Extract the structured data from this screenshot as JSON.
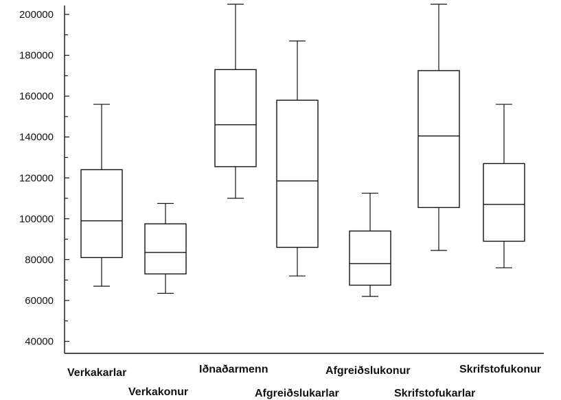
{
  "chart_data": {
    "type": "boxplot",
    "title": "",
    "xlabel": "",
    "ylabel": "",
    "ylim": [
      40000,
      200000
    ],
    "y_ticks": [
      40000,
      60000,
      80000,
      100000,
      120000,
      140000,
      160000,
      180000,
      200000
    ],
    "grid": false,
    "series": [
      {
        "name": "Verkakarlar",
        "whisker_low": 67000,
        "q1": 81000,
        "median": 99000,
        "q3": 124000,
        "whisker_high": 156000
      },
      {
        "name": "Verkakonur",
        "whisker_low": 63500,
        "q1": 73000,
        "median": 83500,
        "q3": 97500,
        "whisker_high": 107500
      },
      {
        "name": "Iðnaðarmenn",
        "whisker_low": 110000,
        "q1": 125500,
        "median": 146000,
        "q3": 173000,
        "whisker_high": 205000
      },
      {
        "name": "Afgreiðslukarlar",
        "whisker_low": 72000,
        "q1": 86000,
        "median": 118500,
        "q3": 158000,
        "whisker_high": 187000
      },
      {
        "name": "Afgreiðslukonur",
        "whisker_low": 62000,
        "q1": 67500,
        "median": 78000,
        "q3": 94000,
        "whisker_high": 112500
      },
      {
        "name": "Skrifstofukarlar",
        "whisker_low": 84500,
        "q1": 105500,
        "median": 140500,
        "q3": 172500,
        "whisker_high": 205000
      },
      {
        "name": "Skrifstofukonur",
        "whisker_low": 76000,
        "q1": 89000,
        "median": 107000,
        "q3": 127000,
        "whisker_high": 156000
      }
    ]
  }
}
